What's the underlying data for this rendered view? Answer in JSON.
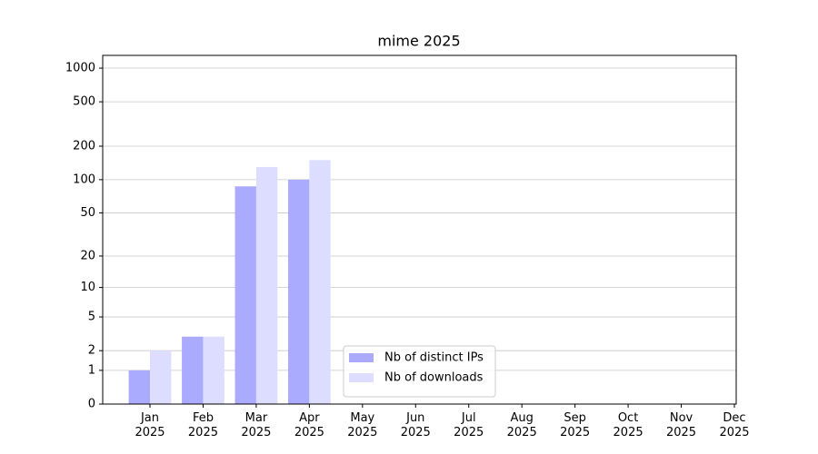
{
  "chart_data": {
    "type": "bar",
    "title": "mime 2025",
    "categories": [
      "Jan\n2025",
      "Feb\n2025",
      "Mar\n2025",
      "Apr\n2025",
      "May\n2025",
      "Jun\n2025",
      "Jul\n2025",
      "Aug\n2025",
      "Sep\n2025",
      "Oct\n2025",
      "Nov\n2025",
      "Dec\n2025"
    ],
    "series": [
      {
        "name": "Nb of distinct IPs",
        "color": "#aaaaff",
        "values": [
          1,
          3,
          87,
          100,
          null,
          null,
          null,
          null,
          null,
          null,
          null,
          null
        ]
      },
      {
        "name": "Nb of downloads",
        "color": "#ddddff",
        "values": [
          2,
          3,
          130,
          150,
          null,
          null,
          null,
          null,
          null,
          null,
          null,
          null
        ]
      }
    ],
    "yscale": "log1p",
    "ylim": [
      0,
      1300
    ],
    "yticks": [
      0,
      1,
      2,
      5,
      10,
      20,
      50,
      100,
      200,
      500,
      1000
    ],
    "grid": true,
    "legend": "lower center"
  }
}
